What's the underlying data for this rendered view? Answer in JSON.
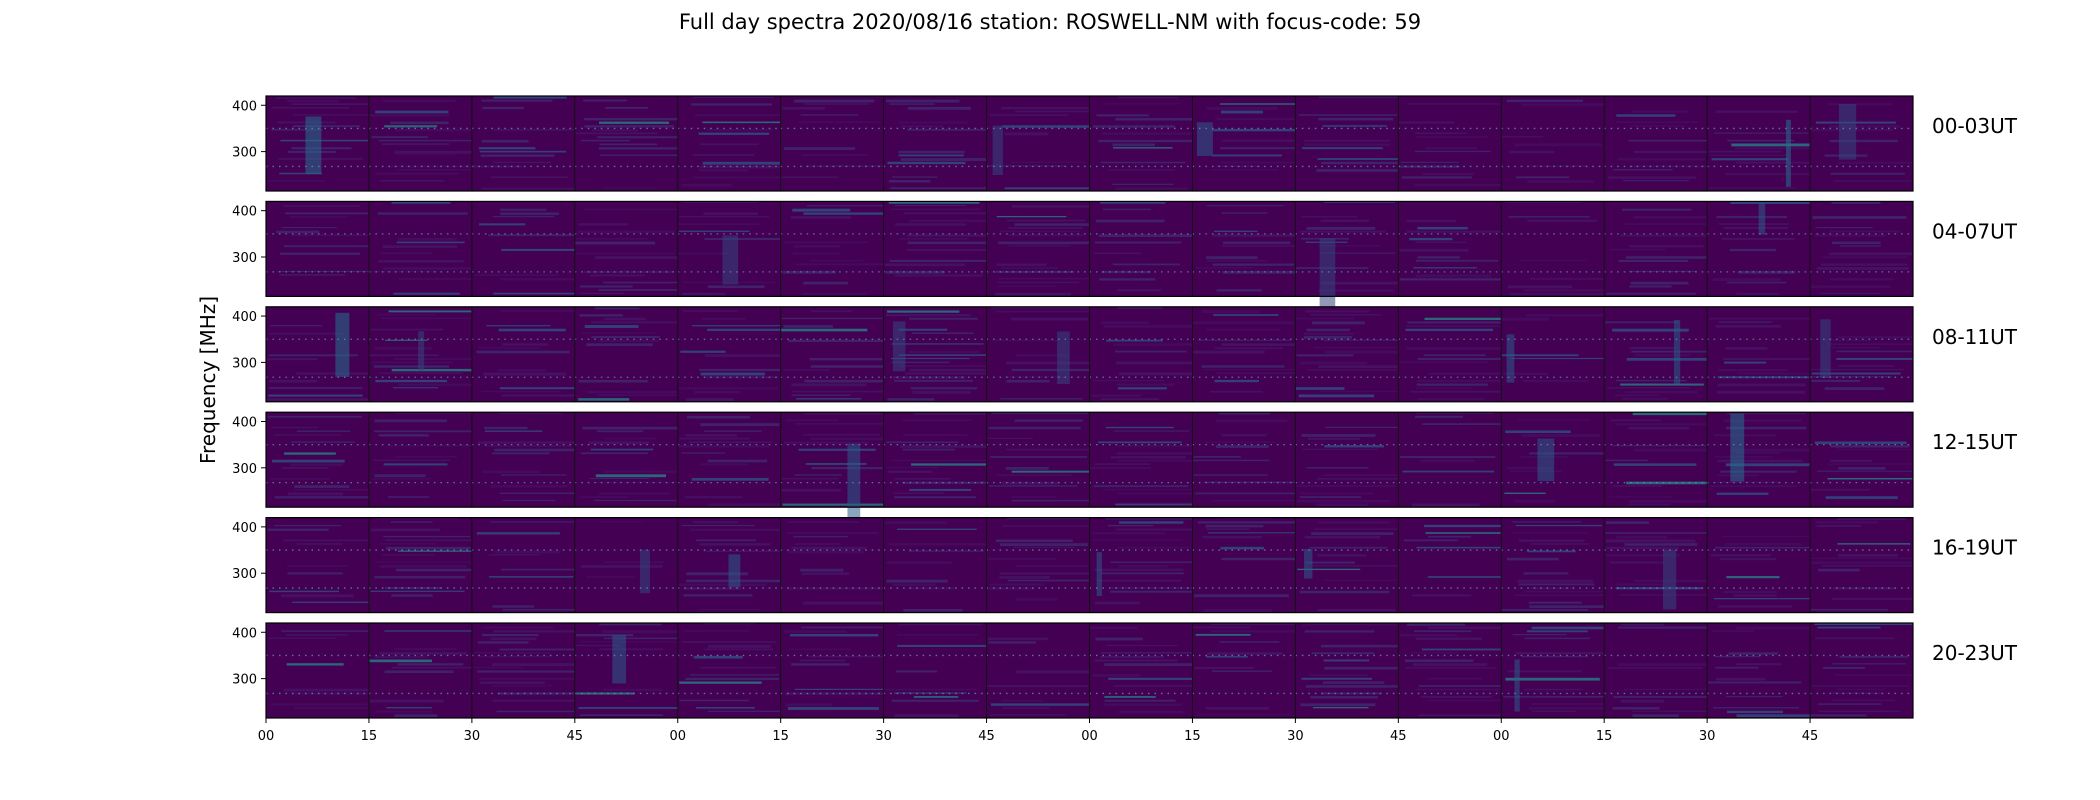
{
  "chart_data": {
    "type": "heatmap",
    "title": "Full day spectra 2020/08/16 station: ROSWELL-NM with focus-code: 59",
    "ylabel": "Frequency [MHz]",
    "xlabel": "",
    "colormap": "viridis",
    "panels_per_row": 16,
    "frequency_ylim": [
      215,
      420
    ],
    "y_ticks": [
      300,
      400
    ],
    "x_tick_labels": [
      "00",
      "15",
      "30",
      "45",
      "00",
      "15",
      "30",
      "45",
      "00",
      "15",
      "30",
      "45",
      "00",
      "15",
      "30",
      "45"
    ],
    "rows": [
      {
        "label": "00-03UT"
      },
      {
        "label": "04-07UT"
      },
      {
        "label": "08-11UT"
      },
      {
        "label": "12-15UT"
      },
      {
        "label": "16-19UT"
      },
      {
        "label": "20-23UT"
      }
    ],
    "colors": {
      "background": "#440154",
      "low": "#46185f",
      "mid": "#31688e",
      "high": "#35b779",
      "peak": "#fde725"
    }
  }
}
